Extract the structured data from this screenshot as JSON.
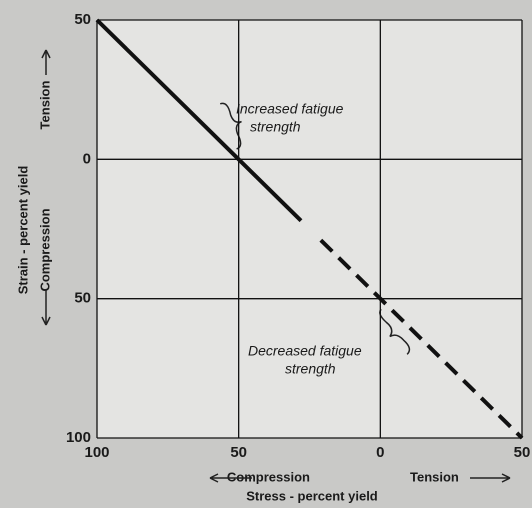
{
  "chart_data": {
    "type": "line",
    "xlim": [
      -100,
      50
    ],
    "xticks": [
      {
        "value": -100,
        "label": "100"
      },
      {
        "value": -50,
        "label": "50"
      },
      0,
      50
    ],
    "ylim": [
      -100,
      50
    ],
    "yticks": [
      50,
      0,
      {
        "value": -50,
        "label": "50"
      },
      {
        "value": -100,
        "label": "100"
      }
    ],
    "grid": true,
    "x_label": "Stress - percent yield",
    "x_left_label": "Compression",
    "x_right_label": "Tension",
    "y_label": "Strain - percent yield",
    "y_bottom_label": "Compression",
    "y_top_label": "Tension",
    "annotations": [
      "Increased fatigue",
      "strength",
      "Decreased fatigue",
      "strength"
    ],
    "series": [
      {
        "color": "#111111",
        "dashed": false,
        "x": [
          -100,
          -28
        ],
        "y": [
          50,
          -22
        ]
      },
      {
        "color": "#111111",
        "dashed": true,
        "x": [
          -21,
          50
        ],
        "y": [
          -29,
          -100
        ]
      }
    ]
  }
}
